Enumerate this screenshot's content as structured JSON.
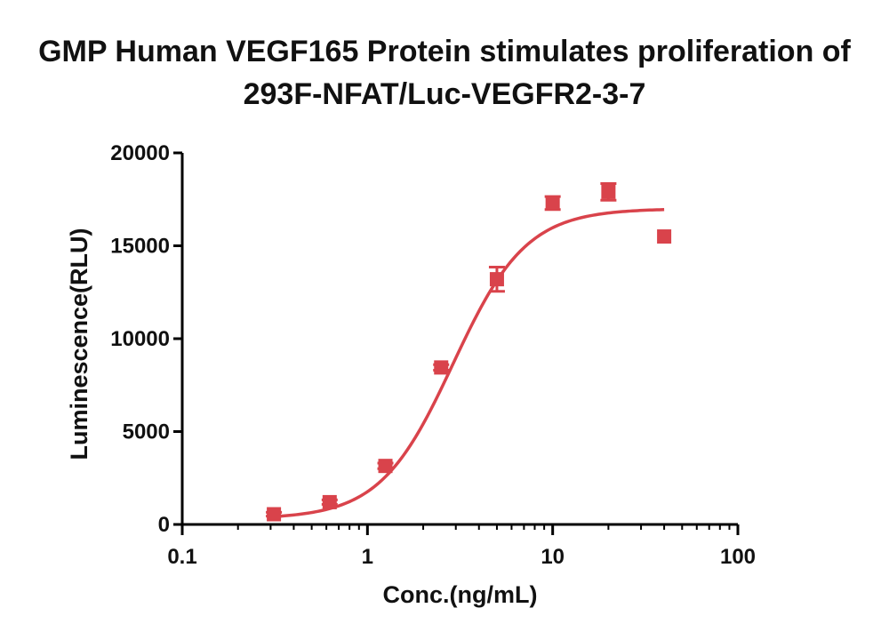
{
  "chart_data": {
    "type": "scatter",
    "title": "GMP Human VEGF165 Protein stimulates proliferation of",
    "subtitle": "293F-NFAT/Luc-VEGFR2-3-7",
    "xlabel": "Conc.(ng/mL)",
    "ylabel": "Luminescence(RLU)",
    "x_scale": "log",
    "xlim": [
      0.1,
      100
    ],
    "ylim": [
      0,
      20000
    ],
    "x_ticks": [
      "0.1",
      "1",
      "10",
      "100"
    ],
    "y_ticks": [
      "0",
      "5000",
      "10000",
      "15000",
      "20000"
    ],
    "grid": false,
    "color": "#d9434b",
    "points": [
      {
        "x": 0.3125,
        "y": 550,
        "err": 100
      },
      {
        "x": 0.625,
        "y": 1200,
        "err": 120
      },
      {
        "x": 1.25,
        "y": 3150,
        "err": 150
      },
      {
        "x": 2.5,
        "y": 8450,
        "err": 150
      },
      {
        "x": 5,
        "y": 13200,
        "err": 650
      },
      {
        "x": 10,
        "y": 17300,
        "err": 350
      },
      {
        "x": 20,
        "y": 17900,
        "err": 450
      },
      {
        "x": 40,
        "y": 15500,
        "err": 0
      }
    ],
    "fit": {
      "type": "4PL",
      "bottom": 300,
      "top": 17000,
      "ec50": 2.9,
      "hill": 2.2,
      "x_range": [
        0.3125,
        40
      ]
    }
  }
}
